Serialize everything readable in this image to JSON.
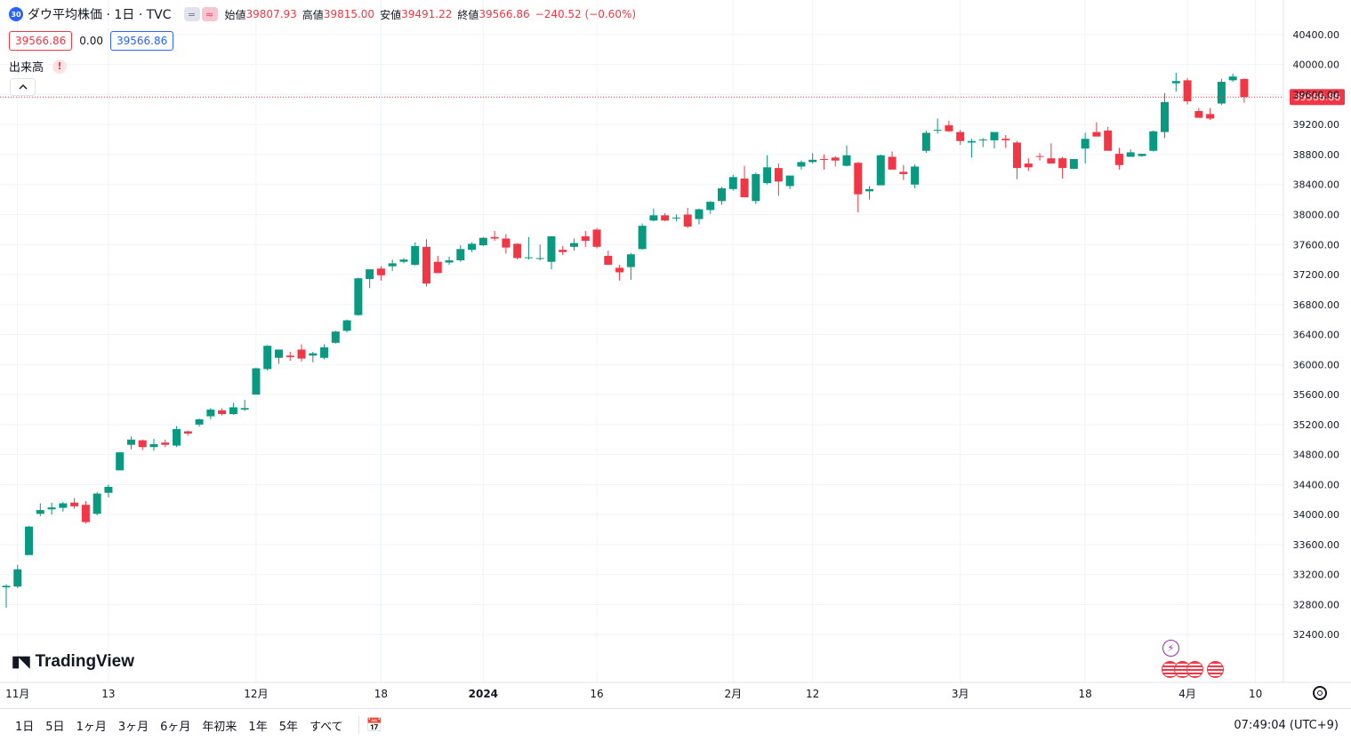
{
  "header": {
    "symbol_badge": "30",
    "title": "ダウ平均株価 · 1日 · TVC",
    "btn_compare": "=",
    "btn_indicator": "≈",
    "open_label": "始値",
    "open_value": "39807.93",
    "high_label": "高値",
    "high_value": "39815.00",
    "low_label": "安値",
    "low_value": "39491.22",
    "close_label": "終値",
    "close_value": "39566.86",
    "change": "−240.52 (−0.60%)"
  },
  "quote": {
    "bid": "39566.86",
    "spread": "0.00",
    "ask": "39566.86"
  },
  "volume": {
    "label": "出来高",
    "warn_icon": "!"
  },
  "price_tag": "39566.86",
  "logo_text": "TradingView",
  "bottom": {
    "ranges": [
      "1日",
      "5日",
      "1ヶ月",
      "3ヶ月",
      "6ヶ月",
      "年初来",
      "1年",
      "5年",
      "すべて"
    ],
    "calendar_icon": "calendar-icon",
    "clock": "07:49:04 (UTC+9)"
  },
  "colors": {
    "up": "#089981",
    "down": "#f23645",
    "grid": "#f0f3fa",
    "text": "#131722"
  },
  "chart_data": {
    "type": "candlestick",
    "ylim": [
      32000,
      40600
    ],
    "y_ticks": [
      32400,
      32800,
      33200,
      33600,
      34000,
      34400,
      34800,
      35200,
      35600,
      36000,
      36400,
      36800,
      37200,
      37600,
      38000,
      38400,
      38800,
      39200,
      39600,
      40000,
      40400
    ],
    "y_tick_labels": [
      "32400.00",
      "32800.00",
      "33200.00",
      "33600.00",
      "34000.00",
      "34400.00",
      "34800.00",
      "35200.00",
      "35600.00",
      "36000.00",
      "36400.00",
      "36800.00",
      "37200.00",
      "37600.00",
      "38000.00",
      "38400.00",
      "38800.00",
      "39200.00",
      "39600.00",
      "40000.00",
      "40400.00"
    ],
    "x_labels": [
      {
        "text": "11月",
        "at": "2023-11-01"
      },
      {
        "text": "13",
        "at": "2023-11-13"
      },
      {
        "text": "12月",
        "at": "2023-12-01"
      },
      {
        "text": "18",
        "at": "2023-12-18"
      },
      {
        "text": "2024",
        "at": "2024-01-02"
      },
      {
        "text": "16",
        "at": "2024-01-16"
      },
      {
        "text": "2月",
        "at": "2024-02-01"
      },
      {
        "text": "12",
        "at": "2024-02-12"
      },
      {
        "text": "3月",
        "at": "2024-03-01"
      },
      {
        "text": "18",
        "at": "2024-03-18"
      },
      {
        "text": "4月",
        "at": "2024-04-01"
      },
      {
        "text": "10",
        "at": "2024-04-10"
      }
    ],
    "candles": [
      {
        "date": "2023-10-31",
        "o": 33030,
        "h": 33070,
        "l": 32760,
        "c": 33050
      },
      {
        "date": "2023-11-01",
        "o": 33040,
        "h": 33330,
        "l": 33020,
        "c": 33270
      },
      {
        "date": "2023-11-02",
        "o": 33460,
        "h": 33850,
        "l": 33460,
        "c": 33840
      },
      {
        "date": "2023-11-03",
        "o": 34010,
        "h": 34150,
        "l": 33980,
        "c": 34060
      },
      {
        "date": "2023-11-06",
        "o": 34070,
        "h": 34160,
        "l": 34000,
        "c": 34095
      },
      {
        "date": "2023-11-07",
        "o": 34090,
        "h": 34170,
        "l": 34040,
        "c": 34150
      },
      {
        "date": "2023-11-08",
        "o": 34160,
        "h": 34220,
        "l": 34080,
        "c": 34110
      },
      {
        "date": "2023-11-09",
        "o": 34130,
        "h": 34180,
        "l": 33880,
        "c": 33900
      },
      {
        "date": "2023-11-10",
        "o": 34010,
        "h": 34300,
        "l": 33990,
        "c": 34280
      },
      {
        "date": "2023-11-13",
        "o": 34290,
        "h": 34400,
        "l": 34230,
        "c": 34370
      },
      {
        "date": "2023-11-14",
        "o": 34590,
        "h": 34830,
        "l": 34590,
        "c": 34830
      },
      {
        "date": "2023-11-15",
        "o": 34930,
        "h": 35040,
        "l": 34870,
        "c": 35000
      },
      {
        "date": "2023-11-16",
        "o": 34990,
        "h": 35000,
        "l": 34860,
        "c": 34900
      },
      {
        "date": "2023-11-17",
        "o": 34900,
        "h": 35010,
        "l": 34850,
        "c": 34940
      },
      {
        "date": "2023-11-20",
        "o": 34960,
        "h": 35000,
        "l": 34900,
        "c": 34930
      },
      {
        "date": "2023-11-21",
        "o": 34920,
        "h": 35180,
        "l": 34900,
        "c": 35140
      },
      {
        "date": "2023-11-22",
        "o": 35110,
        "h": 35120,
        "l": 35050,
        "c": 35080
      },
      {
        "date": "2023-11-24",
        "o": 35200,
        "h": 35280,
        "l": 35170,
        "c": 35270
      },
      {
        "date": "2023-11-27",
        "o": 35310,
        "h": 35420,
        "l": 35270,
        "c": 35400
      },
      {
        "date": "2023-11-28",
        "o": 35390,
        "h": 35420,
        "l": 35320,
        "c": 35340
      },
      {
        "date": "2023-11-29",
        "o": 35340,
        "h": 35490,
        "l": 35330,
        "c": 35430
      },
      {
        "date": "2023-11-30",
        "o": 35400,
        "h": 35530,
        "l": 35380,
        "c": 35420
      },
      {
        "date": "2023-12-01",
        "o": 35600,
        "h": 35960,
        "l": 35600,
        "c": 35950
      },
      {
        "date": "2023-12-04",
        "o": 35940,
        "h": 36260,
        "l": 35920,
        "c": 36250
      },
      {
        "date": "2023-12-05",
        "o": 36090,
        "h": 36200,
        "l": 36010,
        "c": 36200
      },
      {
        "date": "2023-12-06",
        "o": 36120,
        "h": 36170,
        "l": 36050,
        "c": 36100
      },
      {
        "date": "2023-12-07",
        "o": 36200,
        "h": 36270,
        "l": 36040,
        "c": 36080
      },
      {
        "date": "2023-12-08",
        "o": 36120,
        "h": 36170,
        "l": 36030,
        "c": 36150
      },
      {
        "date": "2023-12-11",
        "o": 36090,
        "h": 36270,
        "l": 36070,
        "c": 36230
      },
      {
        "date": "2023-12-12",
        "o": 36290,
        "h": 36450,
        "l": 36280,
        "c": 36440
      },
      {
        "date": "2023-12-13",
        "o": 36450,
        "h": 36600,
        "l": 36430,
        "c": 36590
      },
      {
        "date": "2023-12-14",
        "o": 36660,
        "h": 37160,
        "l": 36650,
        "c": 37150
      },
      {
        "date": "2023-12-15",
        "o": 37140,
        "h": 37250,
        "l": 37020,
        "c": 37270
      },
      {
        "date": "2023-12-18",
        "o": 37280,
        "h": 37310,
        "l": 37120,
        "c": 37190
      },
      {
        "date": "2023-12-19",
        "o": 37310,
        "h": 37400,
        "l": 37250,
        "c": 37350
      },
      {
        "date": "2023-12-20",
        "o": 37370,
        "h": 37420,
        "l": 37350,
        "c": 37400
      },
      {
        "date": "2023-12-21",
        "o": 37330,
        "h": 37630,
        "l": 37320,
        "c": 37580
      },
      {
        "date": "2023-12-22",
        "o": 37570,
        "h": 37670,
        "l": 37040,
        "c": 37080
      },
      {
        "date": "2023-12-26",
        "o": 37370,
        "h": 37450,
        "l": 37220,
        "c": 37220
      },
      {
        "date": "2023-12-27",
        "o": 37360,
        "h": 37440,
        "l": 37330,
        "c": 37390
      },
      {
        "date": "2023-12-28",
        "o": 37390,
        "h": 37590,
        "l": 37370,
        "c": 37540
      },
      {
        "date": "2023-12-29",
        "o": 37530,
        "h": 37630,
        "l": 37500,
        "c": 37610
      },
      {
        "date": "2024-01-02",
        "o": 37590,
        "h": 37700,
        "l": 37580,
        "c": 37690
      },
      {
        "date": "2024-01-03",
        "o": 37700,
        "h": 37780,
        "l": 37650,
        "c": 37680
      },
      {
        "date": "2024-01-04",
        "o": 37680,
        "h": 37740,
        "l": 37480,
        "c": 37560
      },
      {
        "date": "2024-01-05",
        "o": 37610,
        "h": 37620,
        "l": 37400,
        "c": 37420
      },
      {
        "date": "2024-01-08",
        "o": 37420,
        "h": 37700,
        "l": 37400,
        "c": 37430
      },
      {
        "date": "2024-01-09",
        "o": 37420,
        "h": 37600,
        "l": 37390,
        "c": 37420
      },
      {
        "date": "2024-01-10",
        "o": 37370,
        "h": 37710,
        "l": 37270,
        "c": 37710
      },
      {
        "date": "2024-01-11",
        "o": 37530,
        "h": 37580,
        "l": 37460,
        "c": 37500
      },
      {
        "date": "2024-01-12",
        "o": 37570,
        "h": 37680,
        "l": 37520,
        "c": 37620
      },
      {
        "date": "2024-01-15",
        "o": 37710,
        "h": 37780,
        "l": 37570,
        "c": 37650
      },
      {
        "date": "2024-01-16",
        "o": 37800,
        "h": 37820,
        "l": 37550,
        "c": 37570
      },
      {
        "date": "2024-01-17",
        "o": 37450,
        "h": 37520,
        "l": 37330,
        "c": 37330
      },
      {
        "date": "2024-01-18",
        "o": 37290,
        "h": 37330,
        "l": 37120,
        "c": 37230
      },
      {
        "date": "2024-01-19",
        "o": 37300,
        "h": 37490,
        "l": 37130,
        "c": 37470
      },
      {
        "date": "2024-01-22",
        "o": 37540,
        "h": 37880,
        "l": 37530,
        "c": 37850
      },
      {
        "date": "2024-01-23",
        "o": 37920,
        "h": 38080,
        "l": 37910,
        "c": 37990
      },
      {
        "date": "2024-01-24",
        "o": 37990,
        "h": 38020,
        "l": 37910,
        "c": 37920
      },
      {
        "date": "2024-01-25",
        "o": 37960,
        "h": 38000,
        "l": 37910,
        "c": 37960
      },
      {
        "date": "2024-01-26",
        "o": 38000,
        "h": 38090,
        "l": 37820,
        "c": 37840
      },
      {
        "date": "2024-01-29",
        "o": 37940,
        "h": 38080,
        "l": 37870,
        "c": 38070
      },
      {
        "date": "2024-01-30",
        "o": 38060,
        "h": 38180,
        "l": 38010,
        "c": 38170
      },
      {
        "date": "2024-01-31",
        "o": 38180,
        "h": 38370,
        "l": 38130,
        "c": 38350
      },
      {
        "date": "2024-02-01",
        "o": 38340,
        "h": 38530,
        "l": 38320,
        "c": 38500
      },
      {
        "date": "2024-02-02",
        "o": 38480,
        "h": 38650,
        "l": 38310,
        "c": 38230
      },
      {
        "date": "2024-02-05",
        "o": 38180,
        "h": 38560,
        "l": 38140,
        "c": 38540
      },
      {
        "date": "2024-02-06",
        "o": 38420,
        "h": 38790,
        "l": 38400,
        "c": 38630
      },
      {
        "date": "2024-02-07",
        "o": 38620,
        "h": 38680,
        "l": 38250,
        "c": 38440
      },
      {
        "date": "2024-02-08",
        "o": 38380,
        "h": 38490,
        "l": 38340,
        "c": 38520
      },
      {
        "date": "2024-02-09",
        "o": 38640,
        "h": 38720,
        "l": 38600,
        "c": 38700
      },
      {
        "date": "2024-02-12",
        "o": 38700,
        "h": 38820,
        "l": 38680,
        "c": 38730
      },
      {
        "date": "2024-02-13",
        "o": 38740,
        "h": 38800,
        "l": 38600,
        "c": 38730
      },
      {
        "date": "2024-02-14",
        "o": 38760,
        "h": 38780,
        "l": 38640,
        "c": 38720
      },
      {
        "date": "2024-02-15",
        "o": 38650,
        "h": 38920,
        "l": 38640,
        "c": 38790
      },
      {
        "date": "2024-02-16",
        "o": 38690,
        "h": 38700,
        "l": 38030,
        "c": 38270
      },
      {
        "date": "2024-02-20",
        "o": 38310,
        "h": 38380,
        "l": 38200,
        "c": 38340
      },
      {
        "date": "2024-02-21",
        "o": 38390,
        "h": 38800,
        "l": 38390,
        "c": 38790
      },
      {
        "date": "2024-02-22",
        "o": 38770,
        "h": 38840,
        "l": 38600,
        "c": 38600
      },
      {
        "date": "2024-02-23",
        "o": 38570,
        "h": 38660,
        "l": 38460,
        "c": 38540
      },
      {
        "date": "2024-02-26",
        "o": 38400,
        "h": 38670,
        "l": 38350,
        "c": 38640
      },
      {
        "date": "2024-02-27",
        "o": 38850,
        "h": 39120,
        "l": 38820,
        "c": 39090
      },
      {
        "date": "2024-02-28",
        "o": 39120,
        "h": 39280,
        "l": 39080,
        "c": 39130
      },
      {
        "date": "2024-02-29",
        "o": 39190,
        "h": 39250,
        "l": 39100,
        "c": 39110
      },
      {
        "date": "2024-03-01",
        "o": 39100,
        "h": 39130,
        "l": 38930,
        "c": 38980
      },
      {
        "date": "2024-03-04",
        "o": 38960,
        "h": 39010,
        "l": 38760,
        "c": 38980
      },
      {
        "date": "2024-03-05",
        "o": 38990,
        "h": 39020,
        "l": 38900,
        "c": 39000
      },
      {
        "date": "2024-03-06",
        "o": 38990,
        "h": 39100,
        "l": 38880,
        "c": 39100
      },
      {
        "date": "2024-03-07",
        "o": 39010,
        "h": 39060,
        "l": 38890,
        "c": 38990
      },
      {
        "date": "2024-03-08",
        "o": 38960,
        "h": 38980,
        "l": 38470,
        "c": 38620
      },
      {
        "date": "2024-03-11",
        "o": 38680,
        "h": 38750,
        "l": 38580,
        "c": 38630
      },
      {
        "date": "2024-03-12",
        "o": 38780,
        "h": 38820,
        "l": 38720,
        "c": 38770
      },
      {
        "date": "2024-03-13",
        "o": 38750,
        "h": 38950,
        "l": 38700,
        "c": 38680
      },
      {
        "date": "2024-03-14",
        "o": 38750,
        "h": 38770,
        "l": 38480,
        "c": 38620
      },
      {
        "date": "2024-03-15",
        "o": 38610,
        "h": 38720,
        "l": 38620,
        "c": 38740
      },
      {
        "date": "2024-03-18",
        "o": 38880,
        "h": 39090,
        "l": 38680,
        "c": 39010
      },
      {
        "date": "2024-03-19",
        "o": 39100,
        "h": 39230,
        "l": 39060,
        "c": 39040
      },
      {
        "date": "2024-03-20",
        "o": 39120,
        "h": 39170,
        "l": 38920,
        "c": 38850
      },
      {
        "date": "2024-03-21",
        "o": 38810,
        "h": 38890,
        "l": 38600,
        "c": 38660
      },
      {
        "date": "2024-03-22",
        "o": 38770,
        "h": 38870,
        "l": 38770,
        "c": 38830
      },
      {
        "date": "2024-03-25",
        "o": 38780,
        "h": 38800,
        "l": 38770,
        "c": 38810
      },
      {
        "date": "2024-03-26",
        "o": 38850,
        "h": 39120,
        "l": 38840,
        "c": 39110
      },
      {
        "date": "2024-03-27",
        "o": 39100,
        "h": 39620,
        "l": 39020,
        "c": 39500
      },
      {
        "date": "2024-03-28",
        "o": 39750,
        "h": 39890,
        "l": 39640,
        "c": 39780
      },
      {
        "date": "2024-04-01",
        "o": 39790,
        "h": 39820,
        "l": 39470,
        "c": 39510
      },
      {
        "date": "2024-04-02",
        "o": 39380,
        "h": 39420,
        "l": 39290,
        "c": 39290
      },
      {
        "date": "2024-04-03",
        "o": 39340,
        "h": 39420,
        "l": 39260,
        "c": 39280
      },
      {
        "date": "2024-04-04",
        "o": 39480,
        "h": 39810,
        "l": 39460,
        "c": 39770
      },
      {
        "date": "2024-04-05",
        "o": 39790,
        "h": 39880,
        "l": 39770,
        "c": 39840
      },
      {
        "date": "2024-04-08",
        "o": 39807.93,
        "h": 39815.0,
        "l": 39491.22,
        "c": 39566.86
      }
    ]
  }
}
